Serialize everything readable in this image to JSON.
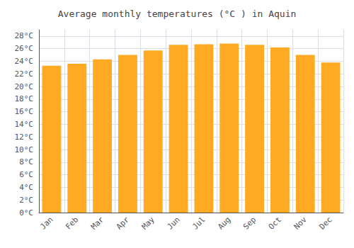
{
  "chart_data": {
    "type": "bar",
    "title": "Average monthly temperatures (°C ) in Aquin",
    "categories": [
      "Jan",
      "Feb",
      "Mar",
      "Apr",
      "May",
      "Jun",
      "Jul",
      "Aug",
      "Sep",
      "Oct",
      "Nov",
      "Dec"
    ],
    "values": [
      23.3,
      23.6,
      24.3,
      25.0,
      25.7,
      26.6,
      26.7,
      26.8,
      26.6,
      26.2,
      25.0,
      23.8
    ],
    "color": "#FFAA22",
    "ylim": [
      0,
      29
    ],
    "yticks": [
      {
        "value": 0,
        "label": "0°C"
      },
      {
        "value": 2,
        "label": "2°C"
      },
      {
        "value": 4,
        "label": "4°C"
      },
      {
        "value": 6,
        "label": "6°C"
      },
      {
        "value": 8,
        "label": "8°C"
      },
      {
        "value": 10,
        "label": "10°C"
      },
      {
        "value": 12,
        "label": "12°C"
      },
      {
        "value": 14,
        "label": "14°C"
      },
      {
        "value": 16,
        "label": "16°C"
      },
      {
        "value": 18,
        "label": "18°C"
      },
      {
        "value": 20,
        "label": "20°C"
      },
      {
        "value": 22,
        "label": "22°C"
      },
      {
        "value": 24,
        "label": "24°C"
      },
      {
        "value": 26,
        "label": "26°C"
      },
      {
        "value": 28,
        "label": "28°C"
      }
    ],
    "grid": true
  }
}
